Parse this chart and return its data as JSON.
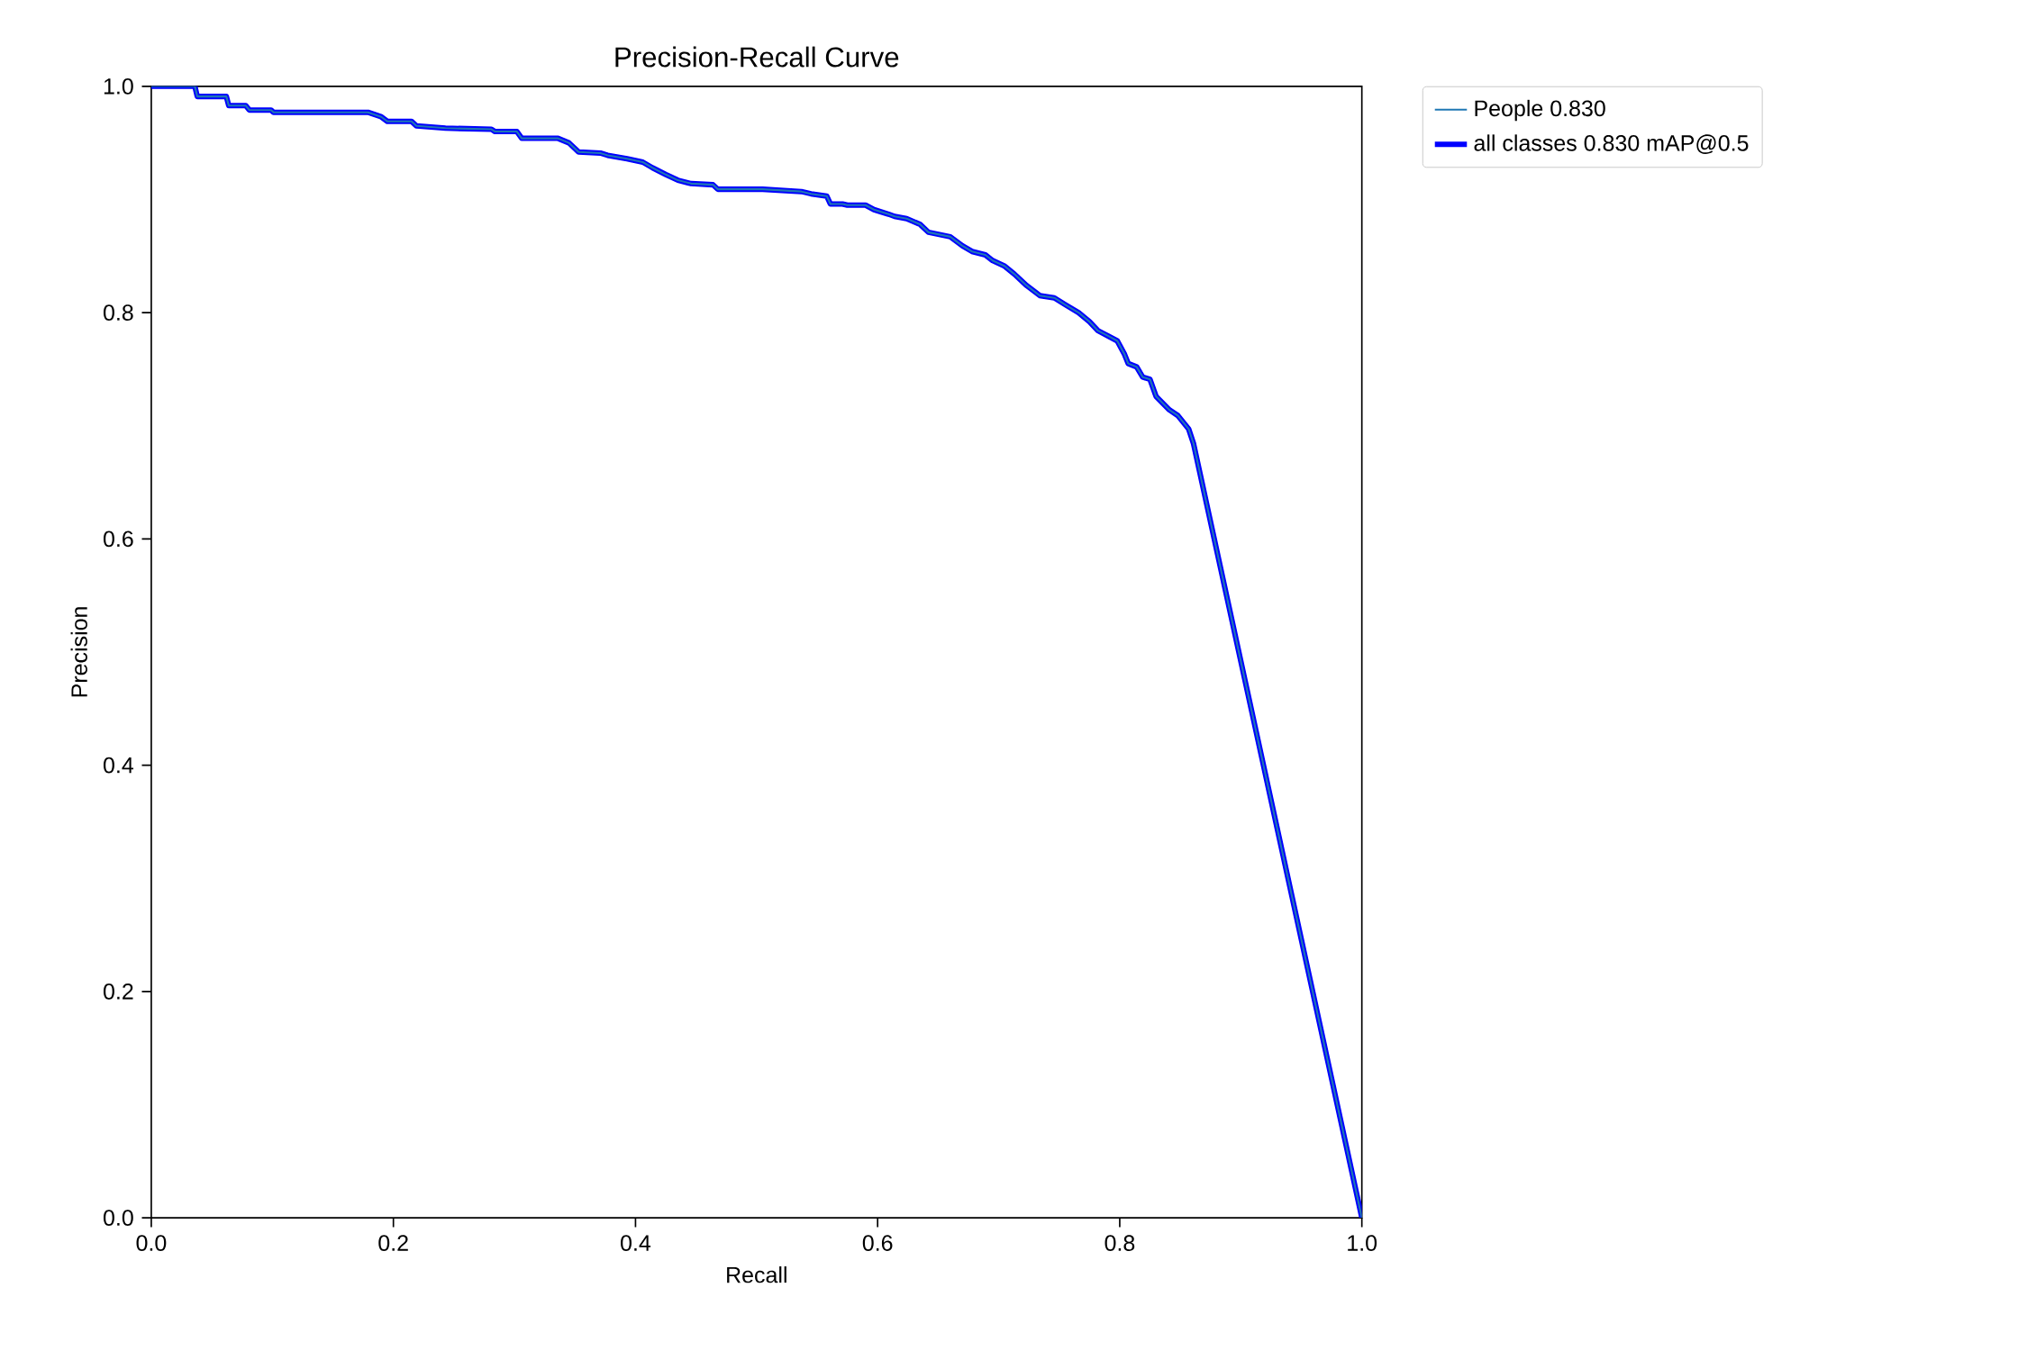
{
  "chart_data": {
    "type": "line",
    "title": "Precision-Recall Curve",
    "xlabel": "Recall",
    "ylabel": "Precision",
    "x": [
      0,
      0.036,
      0.038,
      0.062,
      0.064,
      0.078,
      0.081,
      0.099,
      0.101,
      0.179,
      0.19,
      0.195,
      0.215,
      0.219,
      0.243,
      0.281,
      0.284,
      0.302,
      0.306,
      0.336,
      0.345,
      0.353,
      0.371,
      0.377,
      0.393,
      0.406,
      0.414,
      0.425,
      0.435,
      0.446,
      0.464,
      0.468,
      0.505,
      0.537,
      0.545,
      0.558,
      0.561,
      0.571,
      0.575,
      0.59,
      0.597,
      0.609,
      0.614,
      0.624,
      0.635,
      0.642,
      0.66,
      0.67,
      0.678,
      0.689,
      0.695,
      0.705,
      0.713,
      0.723,
      0.734,
      0.746,
      0.755,
      0.766,
      0.775,
      0.782,
      0.791,
      0.798,
      0.804,
      0.807,
      0.814,
      0.819,
      0.825,
      0.83,
      0.841,
      0.848,
      0.857,
      0.861,
      1.0
    ],
    "series": [
      {
        "name": "People 0.830",
        "color": "#1f77b4",
        "values": [
          1.0,
          1.0,
          0.991,
          0.991,
          0.983,
          0.983,
          0.979,
          0.979,
          0.977,
          0.977,
          0.973,
          0.969,
          0.969,
          0.965,
          0.963,
          0.962,
          0.96,
          0.96,
          0.954,
          0.954,
          0.95,
          0.942,
          0.941,
          0.939,
          0.936,
          0.933,
          0.928,
          0.922,
          0.917,
          0.914,
          0.913,
          0.909,
          0.909,
          0.907,
          0.905,
          0.903,
          0.896,
          0.896,
          0.895,
          0.895,
          0.891,
          0.887,
          0.885,
          0.883,
          0.878,
          0.871,
          0.867,
          0.859,
          0.854,
          0.851,
          0.846,
          0.841,
          0.834,
          0.824,
          0.815,
          0.813,
          0.807,
          0.8,
          0.792,
          0.784,
          0.779,
          0.775,
          0.763,
          0.755,
          0.752,
          0.743,
          0.741,
          0.726,
          0.714,
          0.709,
          0.697,
          0.684,
          0.0
        ]
      },
      {
        "name": "all classes 0.830 mAP@0.5",
        "color": "#0000ff",
        "values": [
          1.0,
          1.0,
          0.991,
          0.991,
          0.983,
          0.983,
          0.979,
          0.979,
          0.977,
          0.977,
          0.973,
          0.969,
          0.969,
          0.965,
          0.963,
          0.962,
          0.96,
          0.96,
          0.954,
          0.954,
          0.95,
          0.942,
          0.941,
          0.939,
          0.936,
          0.933,
          0.928,
          0.922,
          0.917,
          0.914,
          0.913,
          0.909,
          0.909,
          0.907,
          0.905,
          0.903,
          0.896,
          0.896,
          0.895,
          0.895,
          0.891,
          0.887,
          0.885,
          0.883,
          0.878,
          0.871,
          0.867,
          0.859,
          0.854,
          0.851,
          0.846,
          0.841,
          0.834,
          0.824,
          0.815,
          0.813,
          0.807,
          0.8,
          0.792,
          0.784,
          0.779,
          0.775,
          0.763,
          0.755,
          0.752,
          0.743,
          0.741,
          0.726,
          0.714,
          0.709,
          0.697,
          0.684,
          0.0
        ]
      }
    ],
    "xlim": [
      0,
      1
    ],
    "ylim": [
      0,
      1
    ],
    "xticks": [
      {
        "value": 0,
        "label": "0.0"
      },
      {
        "value": 0.2,
        "label": "0.2"
      },
      {
        "value": 0.4,
        "label": "0.4"
      },
      {
        "value": 0.6,
        "label": "0.6"
      },
      {
        "value": 0.8,
        "label": "0.8"
      },
      {
        "value": 1,
        "label": "1.0"
      }
    ],
    "yticks": [
      {
        "value": 0,
        "label": "0.0"
      },
      {
        "value": 0.2,
        "label": "0.2"
      },
      {
        "value": 0.4,
        "label": "0.4"
      },
      {
        "value": 0.6,
        "label": "0.6"
      },
      {
        "value": 0.8,
        "label": "0.8"
      },
      {
        "value": 1,
        "label": "1.0"
      }
    ],
    "legend": "top right",
    "grid": false,
    "marker": "none",
    "line_style": "solid"
  }
}
